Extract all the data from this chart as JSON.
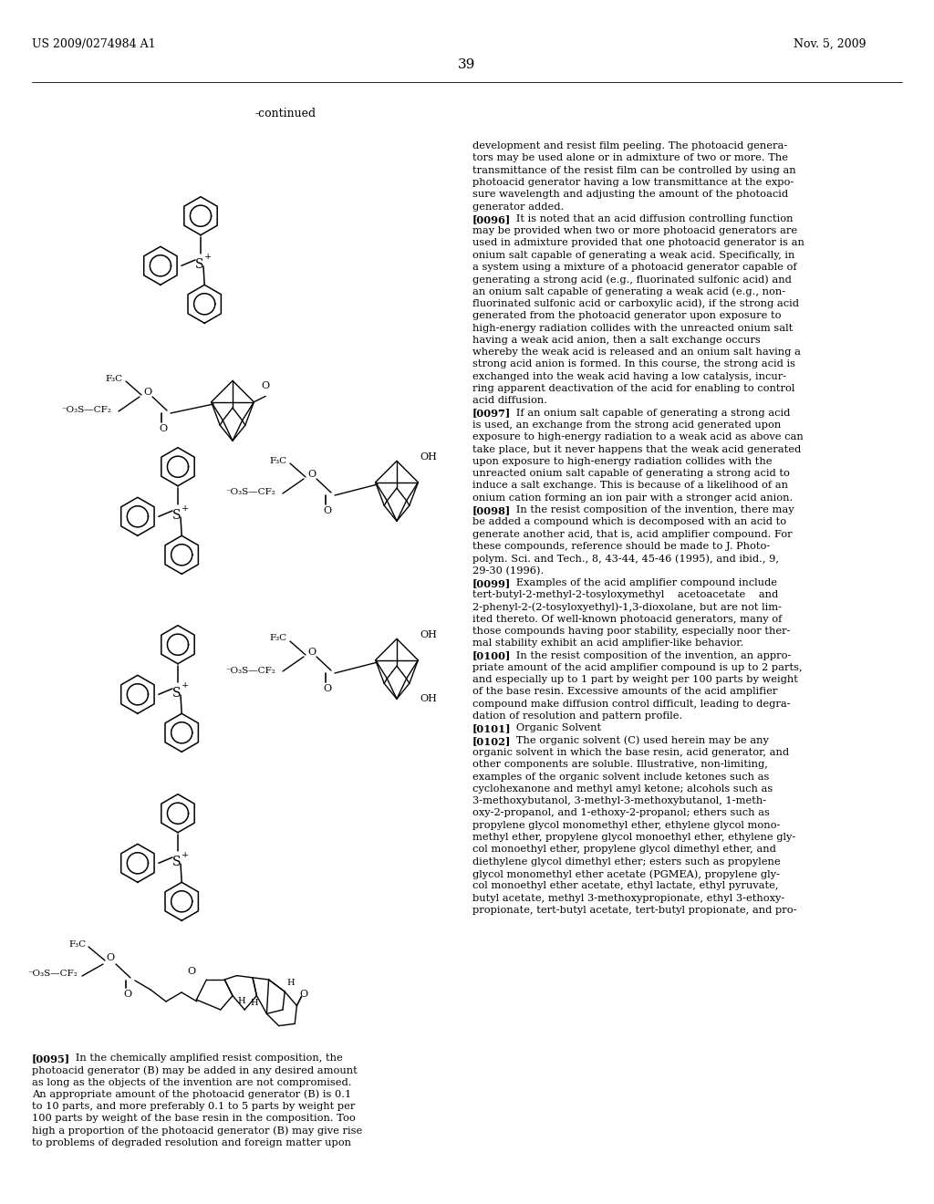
{
  "page_header_left": "US 2009/0274984 A1",
  "page_header_right": "Nov. 5, 2009",
  "page_number": "39",
  "background_color": "#ffffff",
  "continued_label": "-continued",
  "right_paragraphs": [
    [
      "",
      "development and resist film peeling. The photoacid genera-"
    ],
    [
      "",
      "tors may be used alone or in admixture of two or more. The"
    ],
    [
      "",
      "transmittance of the resist film can be controlled by using an"
    ],
    [
      "",
      "photoacid generator having a low transmittance at the expo-"
    ],
    [
      "",
      "sure wavelength and adjusting the amount of the photoacid"
    ],
    [
      "",
      "generator added."
    ],
    [
      "[0096]",
      "   It is noted that an acid diffusion controlling function"
    ],
    [
      "",
      "may be provided when two or more photoacid generators are"
    ],
    [
      "",
      "used in admixture provided that one photoacid generator is an"
    ],
    [
      "",
      "onium salt capable of generating a weak acid. Specifically, in"
    ],
    [
      "",
      "a system using a mixture of a photoacid generator capable of"
    ],
    [
      "",
      "generating a strong acid (e.g., fluorinated sulfonic acid) and"
    ],
    [
      "",
      "an onium salt capable of generating a weak acid (e.g., non-"
    ],
    [
      "",
      "fluorinated sulfonic acid or carboxylic acid), if the strong acid"
    ],
    [
      "",
      "generated from the photoacid generator upon exposure to"
    ],
    [
      "",
      "high-energy radiation collides with the unreacted onium salt"
    ],
    [
      "",
      "having a weak acid anion, then a salt exchange occurs"
    ],
    [
      "",
      "whereby the weak acid is released and an onium salt having a"
    ],
    [
      "",
      "strong acid anion is formed. In this course, the strong acid is"
    ],
    [
      "",
      "exchanged into the weak acid having a low catalysis, incur-"
    ],
    [
      "",
      "ring apparent deactivation of the acid for enabling to control"
    ],
    [
      "",
      "acid diffusion."
    ],
    [
      "[0097]",
      "   If an onium salt capable of generating a strong acid"
    ],
    [
      "",
      "is used, an exchange from the strong acid generated upon"
    ],
    [
      "",
      "exposure to high-energy radiation to a weak acid as above can"
    ],
    [
      "",
      "take place, but it never happens that the weak acid generated"
    ],
    [
      "",
      "upon exposure to high-energy radiation collides with the"
    ],
    [
      "",
      "unreacted onium salt capable of generating a strong acid to"
    ],
    [
      "",
      "induce a salt exchange. This is because of a likelihood of an"
    ],
    [
      "",
      "onium cation forming an ion pair with a stronger acid anion."
    ],
    [
      "[0098]",
      "   In the resist composition of the invention, there may"
    ],
    [
      "",
      "be added a compound which is decomposed with an acid to"
    ],
    [
      "",
      "generate another acid, that is, acid amplifier compound. For"
    ],
    [
      "",
      "these compounds, reference should be made to J. Photo-"
    ],
    [
      "",
      "polym. Sci. and Tech., 8, 43-44, 45-46 (1995), and ibid., 9,"
    ],
    [
      "",
      "29-30 (1996)."
    ],
    [
      "[0099]",
      "   Examples of the acid amplifier compound include"
    ],
    [
      "",
      "tert-butyl-2-methyl-2-tosyloxymethyl    acetoacetate    and"
    ],
    [
      "",
      "2-phenyl-2-(2-tosyloxyethyl)-1,3-dioxolane, but are not lim-"
    ],
    [
      "",
      "ited thereto. Of well-known photoacid generators, many of"
    ],
    [
      "",
      "those compounds having poor stability, especially noor ther-"
    ],
    [
      "",
      "mal stability exhibit an acid amplifier-like behavior."
    ],
    [
      "[0100]",
      "   In the resist composition of the invention, an appro-"
    ],
    [
      "",
      "priate amount of the acid amplifier compound is up to 2 parts,"
    ],
    [
      "",
      "and especially up to 1 part by weight per 100 parts by weight"
    ],
    [
      "",
      "of the base resin. Excessive amounts of the acid amplifier"
    ],
    [
      "",
      "compound make diffusion control difficult, leading to degra-"
    ],
    [
      "",
      "dation of resolution and pattern profile."
    ],
    [
      "[0101]",
      "   Organic Solvent"
    ],
    [
      "[0102]",
      "   The organic solvent (C) used herein may be any"
    ],
    [
      "",
      "organic solvent in which the base resin, acid generator, and"
    ],
    [
      "",
      "other components are soluble. Illustrative, non-limiting,"
    ],
    [
      "",
      "examples of the organic solvent include ketones such as"
    ],
    [
      "",
      "cyclohexanone and methyl amyl ketone; alcohols such as"
    ],
    [
      "",
      "3-methoxybutanol, 3-methyl-3-methoxybutanol, 1-meth-"
    ],
    [
      "",
      "oxy-2-propanol, and 1-ethoxy-2-propanol; ethers such as"
    ],
    [
      "",
      "propylene glycol monomethyl ether, ethylene glycol mono-"
    ],
    [
      "",
      "methyl ether, propylene glycol monoethyl ether, ethylene gly-"
    ],
    [
      "",
      "col monoethyl ether, propylene glycol dimethyl ether, and"
    ],
    [
      "",
      "diethylene glycol dimethyl ether; esters such as propylene"
    ],
    [
      "",
      "glycol monomethyl ether acetate (PGMEA), propylene gly-"
    ],
    [
      "",
      "col monoethyl ether acetate, ethyl lactate, ethyl pyruvate,"
    ],
    [
      "",
      "butyl acetate, methyl 3-methoxypropionate, ethyl 3-ethoxy-"
    ],
    [
      "",
      "propionate, tert-butyl acetate, tert-butyl propionate, and pro-"
    ]
  ],
  "left_paragraphs": [
    [
      "[0095]",
      "   In the chemically amplified resist composition, the"
    ],
    [
      "",
      "photoacid generator (B) may be added in any desired amount"
    ],
    [
      "",
      "as long as the objects of the invention are not compromised."
    ],
    [
      "",
      "An appropriate amount of the photoacid generator (B) is 0.1"
    ],
    [
      "",
      "to 10 parts, and more preferably 0.1 to 5 parts by weight per"
    ],
    [
      "",
      "100 parts by weight of the base resin in the composition. Too"
    ],
    [
      "",
      "high a proportion of the photoacid generator (B) may give rise"
    ],
    [
      "",
      "to problems of degraded resolution and foreign matter upon"
    ]
  ]
}
